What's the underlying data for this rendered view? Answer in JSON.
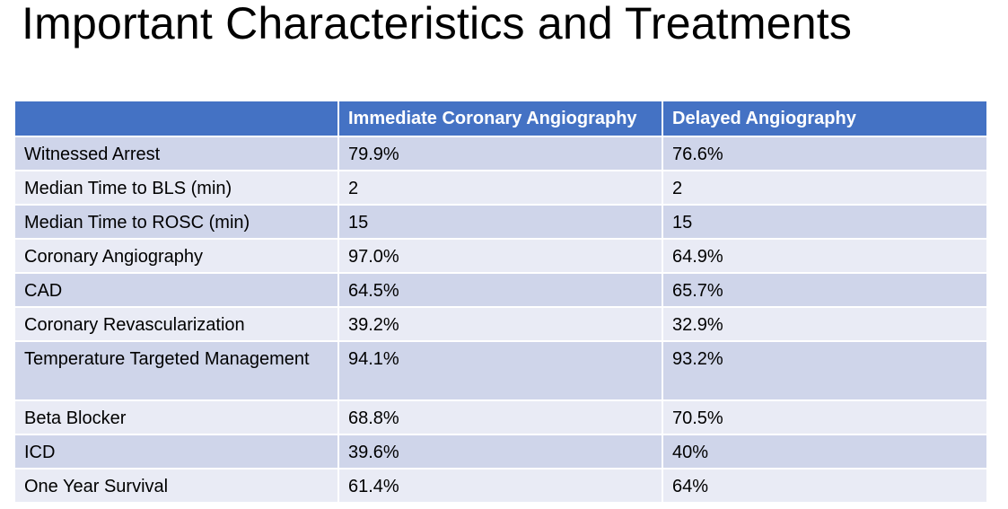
{
  "title": "Important Characteristics and Treatments",
  "table": {
    "headers": [
      "",
      "Immediate Coronary Angiography",
      "Delayed Angiography"
    ],
    "rows": [
      [
        "Witnessed Arrest",
        "79.9%",
        "76.6%"
      ],
      [
        "Median Time to BLS (min)",
        "2",
        "2"
      ],
      [
        "Median Time to ROSC (min)",
        "15",
        "15"
      ],
      [
        "Coronary Angiography",
        "97.0%",
        "64.9%"
      ],
      [
        "CAD",
        "64.5%",
        "65.7%"
      ],
      [
        "Coronary Revascularization",
        "39.2%",
        "32.9%"
      ],
      [
        "Temperature Targeted Management",
        "94.1%",
        "93.2%"
      ],
      [
        "Beta Blocker",
        "68.8%",
        "70.5%"
      ],
      [
        "ICD",
        "39.6%",
        "40%"
      ],
      [
        "One Year Survival",
        "61.4%",
        "64%"
      ]
    ]
  },
  "colors": {
    "header_bg": "#4472c4",
    "row_odd_bg": "#cfd5ea",
    "row_even_bg": "#e9ebf5"
  }
}
